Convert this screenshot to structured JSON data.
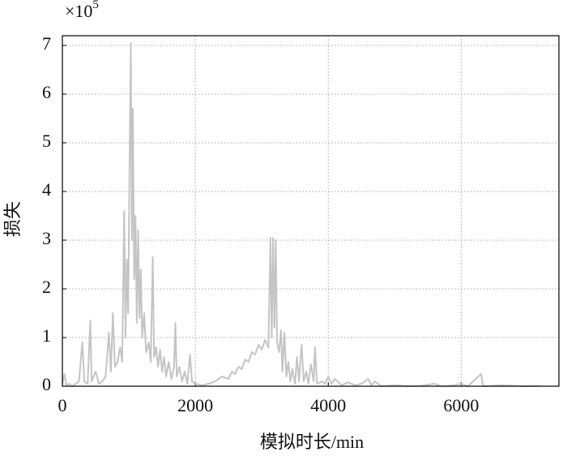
{
  "chart_data": {
    "type": "line",
    "xlabel": "模拟时长/min",
    "ylabel": "损失",
    "y_scale": {
      "base": "×10",
      "exponent": "5"
    },
    "xlim": [
      0,
      7470
    ],
    "ylim": [
      0,
      7.2
    ],
    "xticks": [
      0,
      2000,
      4000,
      6000
    ],
    "yticks": [
      0,
      1,
      2,
      3,
      4,
      5,
      6,
      7
    ],
    "grid": true,
    "x": [
      0,
      30,
      60,
      100,
      150,
      200,
      250,
      300,
      330,
      380,
      420,
      440,
      500,
      550,
      600,
      650,
      700,
      730,
      760,
      790,
      830,
      870,
      900,
      930,
      950,
      970,
      990,
      1010,
      1030,
      1045,
      1060,
      1080,
      1100,
      1120,
      1140,
      1160,
      1180,
      1200,
      1230,
      1260,
      1300,
      1330,
      1360,
      1380,
      1410,
      1440,
      1470,
      1500,
      1530,
      1560,
      1600,
      1640,
      1680,
      1700,
      1720,
      1760,
      1800,
      1840,
      1880,
      1920,
      1950,
      2000,
      2100,
      2200,
      2300,
      2400,
      2500,
      2550,
      2600,
      2650,
      2700,
      2750,
      2800,
      2850,
      2900,
      2950,
      3000,
      3050,
      3100,
      3130,
      3150,
      3170,
      3190,
      3210,
      3230,
      3260,
      3290,
      3310,
      3340,
      3370,
      3400,
      3430,
      3460,
      3500,
      3530,
      3560,
      3600,
      3630,
      3670,
      3700,
      3740,
      3780,
      3800,
      3830,
      3900,
      3950,
      4000,
      4050,
      4100,
      4200,
      4300,
      4400,
      4500,
      4600,
      4650,
      4700,
      4800,
      5000,
      5200,
      5400,
      5600,
      5700,
      5900,
      6000,
      6100,
      6300,
      6330,
      6600,
      7000,
      7200
    ],
    "series": [
      {
        "color": "#c4c4c4",
        "values": [
          0.05,
          0.25,
          0.02,
          0.05,
          0.0,
          0.05,
          0.1,
          0.9,
          0.1,
          0.05,
          1.35,
          0.1,
          0.3,
          0.05,
          0.1,
          0.2,
          1.1,
          0.3,
          1.5,
          0.4,
          0.5,
          0.8,
          0.5,
          3.6,
          1.0,
          2.6,
          1.5,
          4.5,
          7.05,
          3.0,
          5.7,
          2.2,
          3.5,
          1.3,
          3.2,
          1.4,
          2.4,
          1.0,
          1.5,
          0.7,
          0.9,
          0.5,
          2.65,
          0.6,
          0.8,
          0.4,
          0.75,
          0.3,
          0.6,
          0.2,
          0.5,
          0.15,
          0.4,
          1.3,
          0.2,
          0.4,
          0.1,
          0.3,
          0.05,
          0.65,
          0.1,
          0.05,
          0.02,
          0.05,
          0.1,
          0.2,
          0.15,
          0.3,
          0.25,
          0.4,
          0.35,
          0.55,
          0.5,
          0.7,
          0.65,
          0.85,
          0.75,
          0.95,
          0.8,
          3.05,
          1.0,
          3.05,
          1.2,
          3.0,
          0.9,
          0.7,
          1.15,
          0.3,
          1.1,
          0.2,
          0.5,
          0.1,
          0.35,
          0.05,
          0.6,
          0.1,
          0.85,
          0.1,
          0.3,
          0.05,
          0.45,
          0.1,
          0.8,
          0.05,
          0.1,
          0.05,
          0.2,
          0.05,
          0.15,
          0.02,
          0.08,
          0.02,
          0.05,
          0.15,
          0.02,
          0.1,
          0.0,
          0.02,
          0.0,
          0.01,
          0.05,
          0.0,
          0.02,
          0.05,
          0.0,
          0.25,
          0.0,
          0.02,
          0.0,
          0.01
        ]
      }
    ]
  }
}
